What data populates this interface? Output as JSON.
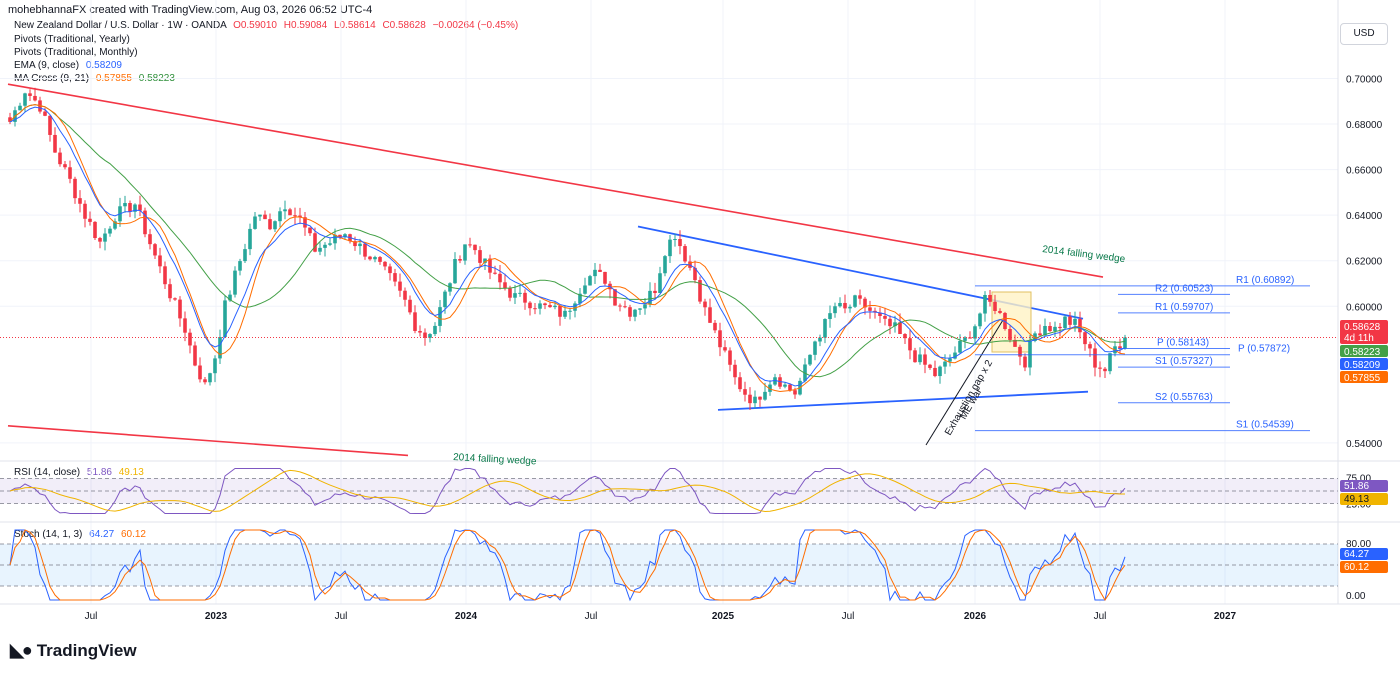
{
  "header": {
    "author_line": "mohebhannaFX created with TradingView.com, Aug 03, 2026 06:52 UTC-4",
    "currency_button": "USD",
    "brand": "TradingView"
  },
  "legend": {
    "symbol": "New Zealand Dollar / U.S. Dollar · 1W · OANDA",
    "open": "O0.59010",
    "high": "H0.59084",
    "low": "L0.58614",
    "close": "C0.58628",
    "change": "−0.00264 (−0.45%)",
    "pivots_yearly": "Pivots (Traditional, Yearly)",
    "pivots_monthly": "Pivots (Traditional, Monthly)",
    "ema_label": "EMA (9, close)",
    "ema_value": "0.58209",
    "ma_label": "MA Cross (9, 21)",
    "ma_fast": "0.57855",
    "ma_slow": "0.58223",
    "rsi_label": "RSI (14, close)",
    "rsi_value": "51.86",
    "rsi_ma": "49.13",
    "stoch_label": "Stoch (14, 1, 3)",
    "stoch_k": "64.27",
    "stoch_d": "60.12"
  },
  "colors": {
    "up": "#26a69a",
    "down": "#f23645",
    "ema": "#2962ff",
    "ma_fast": "#ff6d00",
    "ma_slow": "#43a047",
    "trend_red": "#f23645",
    "wedge_blue": "#2962ff",
    "rsi": "#7e57c2",
    "rsi_ma": "#f0b400",
    "stoch_k": "#2962ff",
    "stoch_d": "#ff6d00"
  },
  "chart_data": {
    "type": "candlestick",
    "symbol": "NZDUSD",
    "timeframe": "1W",
    "y_ticks": [
      "0.70000",
      "0.68000",
      "0.66000",
      "0.64000",
      "0.62000",
      "0.60000",
      "0.54000"
    ],
    "ylim": [
      0.5325,
      0.7125
    ],
    "x_ticks": [
      "Jul",
      "2023",
      "Jul",
      "2024",
      "Jul",
      "2025",
      "Jul",
      "2026",
      "Jul",
      "2027"
    ],
    "price_path": [
      [
        0,
        0.681
      ],
      [
        3,
        0.695
      ],
      [
        6,
        0.688
      ],
      [
        9,
        0.668
      ],
      [
        12,
        0.655
      ],
      [
        15,
        0.64
      ],
      [
        18,
        0.628
      ],
      [
        21,
        0.64
      ],
      [
        25,
        0.645
      ],
      [
        29,
        0.622
      ],
      [
        33,
        0.6
      ],
      [
        35,
        0.59
      ],
      [
        37,
        0.575
      ],
      [
        39,
        0.565
      ],
      [
        41,
        0.578
      ],
      [
        43,
        0.6
      ],
      [
        46,
        0.62
      ],
      [
        49,
        0.64
      ],
      [
        52,
        0.636
      ],
      [
        55,
        0.645
      ],
      [
        58,
        0.638
      ],
      [
        61,
        0.625
      ],
      [
        64,
        0.628
      ],
      [
        67,
        0.632
      ],
      [
        70,
        0.626
      ],
      [
        73,
        0.62
      ],
      [
        76,
        0.612
      ],
      [
        79,
        0.602
      ],
      [
        81,
        0.592
      ],
      [
        83,
        0.587
      ],
      [
        85,
        0.592
      ],
      [
        87,
        0.605
      ],
      [
        89,
        0.618
      ],
      [
        91,
        0.628
      ],
      [
        93,
        0.625
      ],
      [
        95,
        0.618
      ],
      [
        97,
        0.612
      ],
      [
        99,
        0.608
      ],
      [
        101,
        0.604
      ],
      [
        103,
        0.603
      ],
      [
        106,
        0.6
      ],
      [
        109,
        0.598
      ],
      [
        111,
        0.596
      ],
      [
        113,
        0.604
      ],
      [
        115,
        0.612
      ],
      [
        117,
        0.614
      ],
      [
        119,
        0.612
      ],
      [
        121,
        0.603
      ],
      [
        124,
        0.598
      ],
      [
        127,
        0.602
      ],
      [
        129,
        0.608
      ],
      [
        131,
        0.625
      ],
      [
        133,
        0.632
      ],
      [
        135,
        0.622
      ],
      [
        137,
        0.612
      ],
      [
        139,
        0.598
      ],
      [
        141,
        0.588
      ],
      [
        143,
        0.578
      ],
      [
        145,
        0.568
      ],
      [
        147,
        0.562
      ],
      [
        149,
        0.558
      ],
      [
        151,
        0.565
      ],
      [
        153,
        0.57
      ],
      [
        155,
        0.565
      ],
      [
        157,
        0.562
      ],
      [
        159,
        0.572
      ],
      [
        161,
        0.585
      ],
      [
        163,
        0.592
      ],
      [
        165,
        0.6
      ],
      [
        167,
        0.598
      ],
      [
        169,
        0.602
      ],
      [
        171,
        0.6
      ],
      [
        173,
        0.596
      ],
      [
        175,
        0.592
      ],
      [
        177,
        0.59
      ],
      [
        179,
        0.584
      ],
      [
        181,
        0.578
      ],
      [
        183,
        0.574
      ],
      [
        185,
        0.57
      ],
      [
        187,
        0.574
      ],
      [
        189,
        0.58
      ],
      [
        191,
        0.585
      ],
      [
        193,
        0.592
      ],
      [
        195,
        0.602
      ],
      [
        197,
        0.6
      ],
      [
        199,
        0.592
      ],
      [
        201,
        0.582
      ],
      [
        203,
        0.576
      ],
      [
        205,
        0.588
      ],
      [
        207,
        0.592
      ],
      [
        209,
        0.59
      ],
      [
        211,
        0.594
      ],
      [
        213,
        0.592
      ],
      [
        215,
        0.584
      ],
      [
        217,
        0.575
      ],
      [
        219,
        0.572
      ],
      [
        221,
        0.582
      ],
      [
        223,
        0.586
      ]
    ],
    "series": [
      {
        "name": "EMA (9, close)",
        "last": 0.58209
      },
      {
        "name": "MA Cross (9, 21)",
        "values": [
          0.57855,
          0.58223
        ]
      }
    ],
    "pivots": [
      {
        "label": "R1 (0.60892)",
        "value": 0.60892
      },
      {
        "label": "R2 (0.60523)",
        "value": 0.60523
      },
      {
        "label": "R1 (0.59707)",
        "value": 0.59707
      },
      {
        "label": "P (0.58143)",
        "value": 0.58143
      },
      {
        "label": "P (0.57872)",
        "value": 0.57872
      },
      {
        "label": "S1 (0.57327)",
        "value": 0.57327
      },
      {
        "label": "S2 (0.55763)",
        "value": 0.55763
      },
      {
        "label": "S1 (0.54539)",
        "value": 0.54539
      }
    ],
    "trendlines": [
      {
        "name": "upper-red",
        "from": [
          0,
          0.6975
        ],
        "to": [
          219,
          0.6128
        ]
      },
      {
        "name": "lower-red",
        "from": [
          0,
          0.5475
        ],
        "to": [
          80,
          0.5345
        ]
      },
      {
        "name": "wedge-upper",
        "from": [
          126,
          0.635
        ],
        "to": [
          215,
          0.5945
        ]
      },
      {
        "name": "wedge-lower",
        "from": [
          142,
          0.5545
        ],
        "to": [
          216,
          0.5625
        ]
      }
    ],
    "annotations": [
      "2014 falling wedge",
      "2014 falling wedge",
      "Exhaustion gap x 2",
      "ME war"
    ],
    "price_badges": [
      {
        "text": "0.58628",
        "sub": "4d 11h",
        "color": "#f23645"
      },
      {
        "text": "0.58223",
        "color": "#43a047"
      },
      {
        "text": "0.58209",
        "color": "#2962ff"
      },
      {
        "text": "0.57855",
        "color": "#ff6d00"
      }
    ],
    "rsi": {
      "ticks": [
        "75.00",
        "25.00"
      ],
      "last": 51.86,
      "ma": 49.13
    },
    "stoch": {
      "ticks": [
        "80.00",
        "0.00"
      ],
      "k": 64.27,
      "d": 60.12
    }
  }
}
